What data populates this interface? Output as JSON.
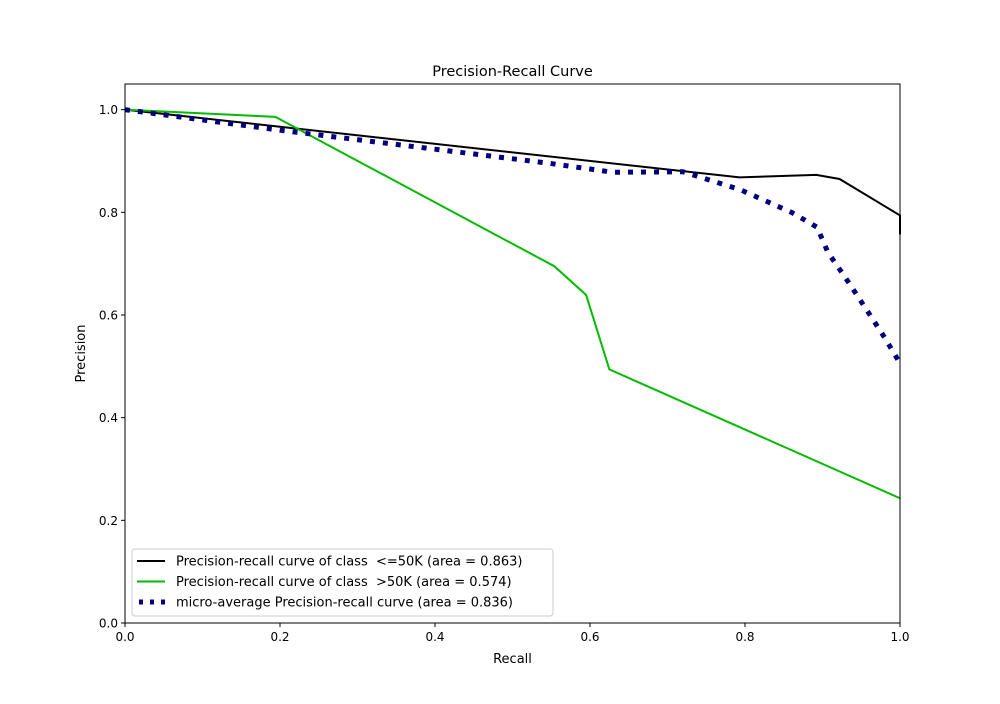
{
  "chart_data": {
    "type": "line",
    "title": "Precision-Recall Curve",
    "xlabel": "Recall",
    "ylabel": "Precision",
    "xlim": [
      0,
      1.0
    ],
    "ylim": [
      0,
      1.05
    ],
    "xticks": [
      "0.0",
      "0.2",
      "0.4",
      "0.6",
      "0.8",
      "1.0"
    ],
    "yticks": [
      "0.0",
      "0.2",
      "0.4",
      "0.6",
      "0.8",
      "1.0"
    ],
    "grid": false,
    "legend_position": "lower-left",
    "series": [
      {
        "name": "Precision-recall curve of class  <=50K (area = 0.863)",
        "color": "#000000",
        "style": "solid",
        "x": [
          0.0,
          0.793,
          0.892,
          0.922,
          1.0,
          1.0
        ],
        "y": [
          1.0,
          0.868,
          0.873,
          0.865,
          0.794,
          0.757
        ]
      },
      {
        "name": "Precision-recall curve of class  >50K (area = 0.574)",
        "color": "#00bb00",
        "style": "solid",
        "x": [
          0.0,
          0.194,
          0.554,
          0.595,
          0.625,
          1.0
        ],
        "y": [
          1.0,
          0.986,
          0.695,
          0.639,
          0.494,
          0.243
        ]
      },
      {
        "name": "micro-average Precision-recall curve (area = 0.836)",
        "color": "#000080",
        "style": "dotted",
        "x": [
          0.0,
          0.2,
          0.4,
          0.55,
          0.63,
          0.72,
          0.794,
          0.86,
          0.893,
          0.907,
          0.929,
          0.96,
          0.981,
          1.0
        ],
        "y": [
          1.0,
          0.96,
          0.923,
          0.895,
          0.878,
          0.879,
          0.844,
          0.8,
          0.771,
          0.722,
          0.674,
          0.603,
          0.554,
          0.506
        ]
      }
    ]
  }
}
